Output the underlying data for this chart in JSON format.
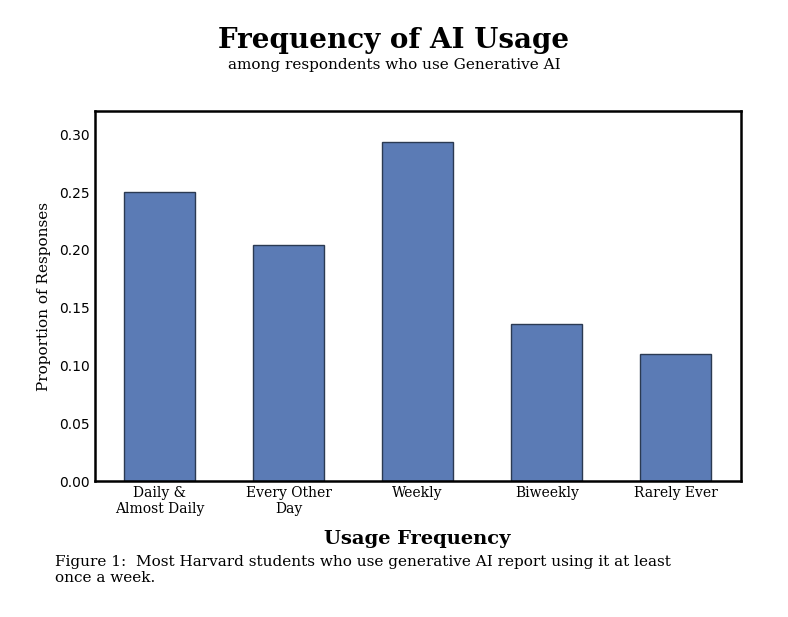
{
  "title": "Frequency of AI Usage",
  "subtitle": "among respondents who use Generative AI",
  "xlabel": "Usage Frequency",
  "ylabel": "Proportion of Responses",
  "categories": [
    "Daily &\nAlmost Daily",
    "Every Other\nDay",
    "Weekly",
    "Biweekly",
    "Rarely Ever"
  ],
  "values": [
    0.25,
    0.204,
    0.293,
    0.136,
    0.11
  ],
  "bar_color": "#5B7BB5",
  "ylim": [
    0.0,
    0.32
  ],
  "yticks": [
    0.0,
    0.05,
    0.1,
    0.15,
    0.2,
    0.25,
    0.3
  ],
  "figure_caption": "Figure 1:  Most Harvard students who use generative AI report using it at least\nonce a week.",
  "background_color": "#FFFFFF",
  "title_fontsize": 20,
  "subtitle_fontsize": 11,
  "xlabel_fontsize": 14,
  "ylabel_fontsize": 11,
  "tick_fontsize": 10,
  "caption_fontsize": 11,
  "bar_edgecolor": "#2B3A52",
  "spine_linewidth": 1.8
}
